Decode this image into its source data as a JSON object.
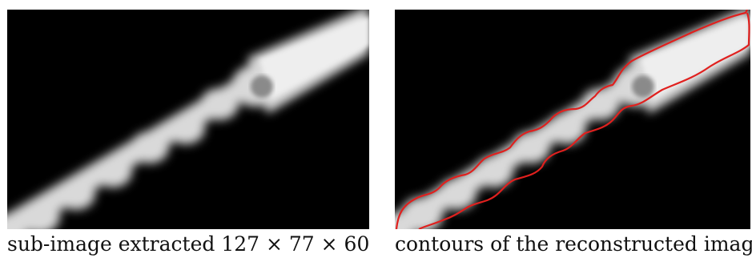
{
  "figure": {
    "left_caption": "sub-image extracted 127 × 77 × 60",
    "right_caption": "contours of the reconstructed image"
  },
  "colors": {
    "background": "#000000",
    "structure": "#e6e6e6",
    "contour": "#e0201e"
  }
}
